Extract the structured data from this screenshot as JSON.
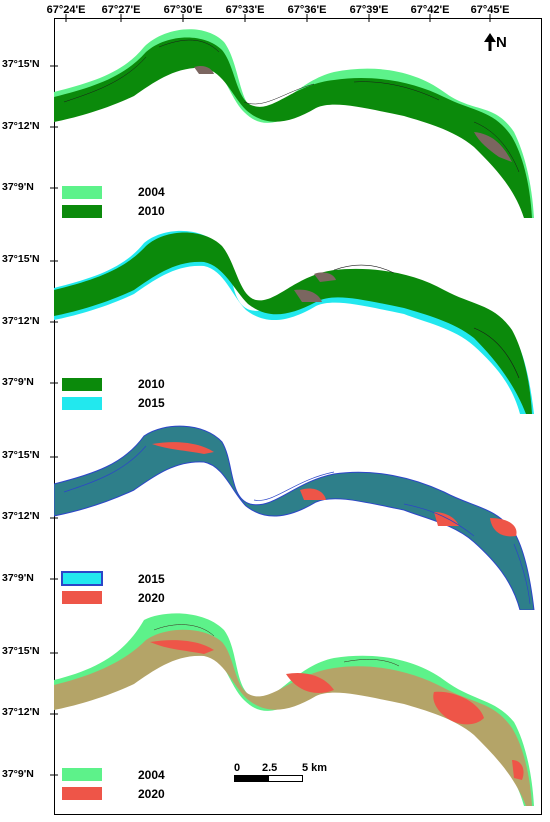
{
  "x_ticks": [
    "67°24'E",
    "67°27'E",
    "67°30'E",
    "67°33'E",
    "67°36'E",
    "67°39'E",
    "67°42'E",
    "67°45'E"
  ],
  "y_ticks": [
    "37°15'N",
    "37°12'N",
    "37°9'N"
  ],
  "north_label": "N",
  "panels": [
    {
      "legend": [
        {
          "label": "2004",
          "color": "#5df28a"
        },
        {
          "label": "2010",
          "color": "#0b8a0b"
        }
      ]
    },
    {
      "legend": [
        {
          "label": "2010",
          "color": "#0b8a0b"
        },
        {
          "label": "2015",
          "color": "#22e8ee"
        }
      ]
    },
    {
      "legend": [
        {
          "label": "2015",
          "color": "#22e8ee"
        },
        {
          "label": "2020",
          "color": "#ee5548"
        }
      ]
    },
    {
      "legend": [
        {
          "label": "2004",
          "color": "#5df28a"
        },
        {
          "label": "2020",
          "color": "#ee5548"
        }
      ]
    }
  ],
  "scale": {
    "labels": [
      "0",
      "2.5",
      "5 km"
    ]
  },
  "colors": {
    "mixed_green_cyan": "#2e7f8a",
    "overlap_tan": "#b4a468",
    "outline_blue": "#2c45c8",
    "sandbar_brown": "#7b6660"
  }
}
